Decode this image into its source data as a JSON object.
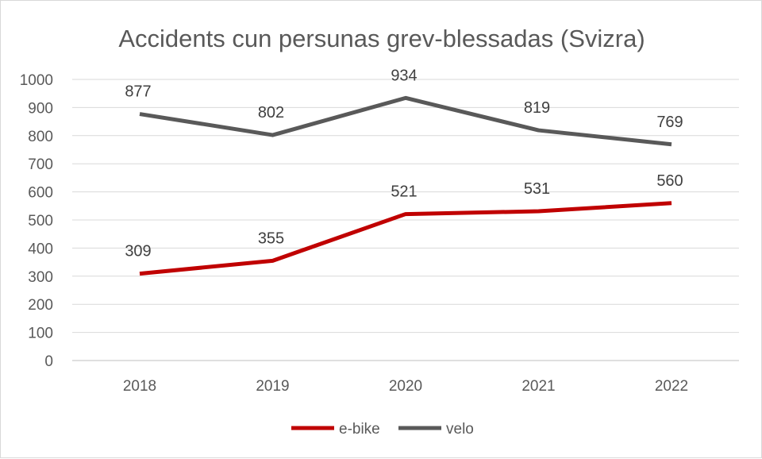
{
  "chart_data": {
    "type": "line",
    "title": "Accidents cun persunas grev-blessadas (Svizra)",
    "xlabel": "",
    "ylabel": "",
    "categories": [
      "2018",
      "2019",
      "2020",
      "2021",
      "2022"
    ],
    "ylim": [
      0,
      1000
    ],
    "yticks": [
      0,
      100,
      200,
      300,
      400,
      500,
      600,
      700,
      800,
      900,
      1000
    ],
    "grid": true,
    "legend_position": "bottom",
    "series": [
      {
        "name": "e-bike",
        "color": "#c00000",
        "values": [
          309,
          355,
          521,
          531,
          560
        ]
      },
      {
        "name": "velo",
        "color": "#595959",
        "values": [
          877,
          802,
          934,
          819,
          769
        ]
      }
    ]
  }
}
